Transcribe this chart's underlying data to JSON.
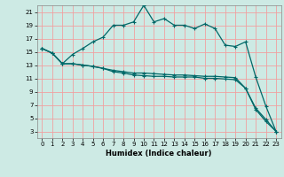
{
  "title": "",
  "xlabel": "Humidex (Indice chaleur)",
  "ylabel": "",
  "bg_color": "#cdeae4",
  "grid_color": "#f0a0a0",
  "line_color": "#006868",
  "xlim": [
    -0.5,
    23.5
  ],
  "ylim": [
    2,
    22
  ],
  "xticks": [
    0,
    1,
    2,
    3,
    4,
    5,
    6,
    7,
    8,
    9,
    10,
    11,
    12,
    13,
    14,
    15,
    16,
    17,
    18,
    19,
    20,
    21,
    22,
    23
  ],
  "yticks": [
    3,
    5,
    7,
    9,
    11,
    13,
    15,
    17,
    19,
    21
  ],
  "line1_x": [
    0,
    1,
    2,
    3,
    4,
    5,
    6,
    7,
    8,
    9,
    10,
    11,
    12,
    13,
    14,
    15,
    16,
    17,
    18,
    19,
    20,
    21,
    22,
    23
  ],
  "line1_y": [
    15.5,
    14.8,
    13.2,
    14.6,
    15.5,
    16.5,
    17.2,
    19.0,
    19.0,
    19.5,
    22.0,
    19.5,
    20.0,
    19.0,
    19.0,
    18.5,
    19.2,
    18.5,
    16.0,
    15.8,
    16.5,
    11.2,
    6.8,
    3.0
  ],
  "line2_x": [
    0,
    1,
    2,
    3,
    4,
    5,
    6,
    7,
    8,
    9,
    10,
    11,
    12,
    13,
    14,
    15,
    16,
    17,
    18,
    19,
    20,
    21,
    22,
    23
  ],
  "line2_y": [
    15.5,
    14.8,
    13.2,
    13.2,
    13.0,
    12.8,
    12.5,
    12.2,
    12.0,
    11.8,
    11.8,
    11.7,
    11.6,
    11.5,
    11.5,
    11.4,
    11.3,
    11.3,
    11.2,
    11.1,
    9.5,
    6.5,
    4.8,
    3.0
  ],
  "line3_x": [
    0,
    1,
    2,
    3,
    4,
    5,
    6,
    7,
    8,
    9,
    10,
    11,
    12,
    13,
    14,
    15,
    16,
    17,
    18,
    19,
    20,
    21,
    22,
    23
  ],
  "line3_y": [
    15.5,
    14.8,
    13.2,
    13.2,
    13.0,
    12.8,
    12.5,
    12.0,
    11.8,
    11.5,
    11.4,
    11.3,
    11.3,
    11.2,
    11.2,
    11.2,
    11.0,
    11.0,
    10.9,
    10.8,
    9.5,
    6.3,
    4.5,
    3.0
  ],
  "tick_fontsize": 5,
  "xlabel_fontsize": 6
}
